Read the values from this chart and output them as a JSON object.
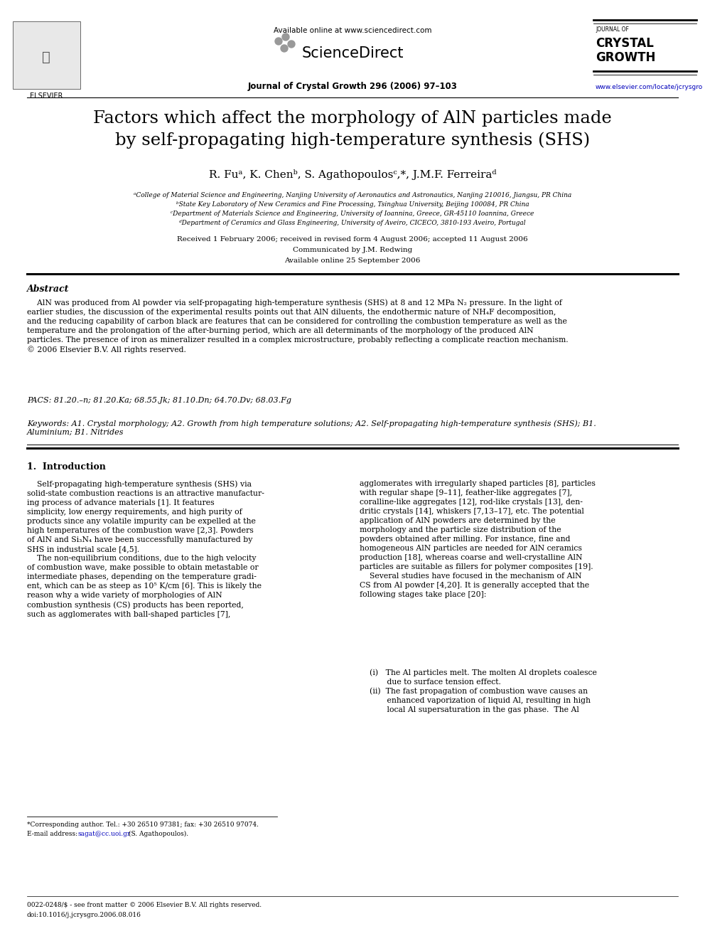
{
  "bg_color": "#ffffff",
  "page_width": 9.92,
  "page_height": 13.23,
  "header_available_online": "Available online at www.sciencedirect.com",
  "header_journal_name": "Journal of Crystal Growth 296 (2006) 97–103",
  "header_sciencedirect": "ScienceDirect",
  "header_journal_of": "JOURNAL OF",
  "header_crystal": "CRYSTAL",
  "header_growth": "GROWTH",
  "header_website": "www.elsevier.com/locate/jcrysgro",
  "header_elsevier": "ELSEVIER",
  "title_line1": "Factors which affect the morphology of AlN particles made",
  "title_line2": "by self-propagating high-temperature synthesis (SHS)",
  "authors": "R. Fuᵃ, K. Chenᵇ, S. Agathopoulosᶜ,*, J.M.F. Ferreiraᵈ",
  "aff1": "ᵃCollege of Material Science and Engineering, Nanjing University of Aeronautics and Astronautics, Nanjing 210016, Jiangsu, PR China",
  "aff2": "ᵇState Key Laboratory of New Ceramics and Fine Processing, Tsinghua University, Beijing 100084, PR China",
  "aff3": "ᶜDepartment of Materials Science and Engineering, University of Ioannina, Greece, GR-45110 Ioannina, Greece",
  "aff4": "ᵈDepartment of Ceramics and Glass Engineering, University of Aveiro, CICECO, 3810-193 Aveiro, Portugal",
  "received": "Received 1 February 2006; received in revised form 4 August 2006; accepted 11 August 2006",
  "communicated": "Communicated by J.M. Redwing",
  "available_online": "Available online 25 September 2006",
  "abstract_head": "Abstract",
  "abstract_body": "    AlN was produced from Al powder via self-propagating high-temperature synthesis (SHS) at 8 and 12 MPa N₂ pressure. In the light of\nearlier studies, the discussion of the experimental results points out that AlN diluents, the endothermic nature of NH₄F decomposition,\nand the reducing capability of carbon black are features that can be considered for controlling the combustion temperature as well as the\ntemperature and the prolongation of the after-burning period, which are all determinants of the morphology of the produced AlN\nparticles. The presence of iron as mineralizer resulted in a complex microstructure, probably reflecting a complicate reaction mechanism.\n© 2006 Elsevier B.V. All rights reserved.",
  "pacs": "PACS: 81.20.–n; 81.20.Ka; 68.55.Jk; 81.10.Dn; 64.70.Dv; 68.03.Fg",
  "keywords": "Keywords: A1. Crystal morphology; A2. Growth from high temperature solutions; A2. Self-propagating high-temperature synthesis (SHS); B1.\nAluminium; B1. Nitrides",
  "sec1_head": "1.  Introduction",
  "col1_text": "    Self-propagating high-temperature synthesis (SHS) via\nsolid-state combustion reactions is an attractive manufactur-\ning process of advance materials [1]. It features\nsimplicity, low energy requirements, and high purity of\nproducts since any volatile impurity can be expelled at the\nhigh temperatures of the combustion wave [2,3]. Powders\nof AlN and Si₃N₄ have been successfully manufactured by\nSHS in industrial scale [4,5].\n    The non-equilibrium conditions, due to the high velocity\nof combustion wave, make possible to obtain metastable or\nintermediate phases, depending on the temperature gradi-\nent, which can be as steep as 10⁵ K/cm [6]. This is likely the\nreason why a wide variety of morphologies of AlN\ncombustion synthesis (CS) products has been reported,\nsuch as agglomerates with ball-shaped particles [7],",
  "col2_text": "agglomerates with irregularly shaped particles [8], particles\nwith regular shape [9–11], feather-like aggregates [7],\ncoralline-like aggregates [12], rod-like crystals [13], den-\ndritic crystals [14], whiskers [7,13–17], etc. The potential\napplication of AlN powders are determined by the\nmorphology and the particle size distribution of the\npowders obtained after milling. For instance, fine and\nhomogeneous AlN particles are needed for AlN ceramics\nproduction [18], whereas coarse and well-crystalline AlN\nparticles are suitable as fillers for polymer composites [19].\n    Several studies have focused in the mechanism of AlN\nCS from Al powder [4,20]. It is generally accepted that the\nfollowing stages take place [20]:",
  "col2_bullets": "    (i)   The Al particles melt. The molten Al droplets coalesce\n           due to surface tension effect.\n    (ii)  The fast propagation of combustion wave causes an\n           enhanced vaporization of liquid Al, resulting in high\n           local Al supersaturation in the gas phase.  The Al",
  "footnote1": "*Corresponding author. Tel.: +30 26510 97381; fax: +30 26510 97074.",
  "footnote2_pre": "E-mail address: ",
  "footnote2_email": "sagat@cc.uoi.gr",
  "footnote2_post": " (S. Agathopoulos).",
  "bottom1": "0022-0248/$ - see front matter © 2006 Elsevier B.V. All rights reserved.",
  "bottom2": "doi:10.1016/j.jcrysgro.2006.08.016",
  "link_color": "#0000BB",
  "text_color": "#000000"
}
